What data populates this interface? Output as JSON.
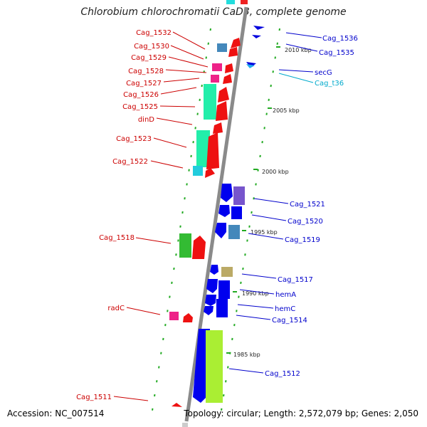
{
  "title": "Chlorobium chlorochromatii CaD3, complete genome",
  "footer": {
    "accession": "Accession: NC_007514",
    "topology": "Topology: circular; Length: 2,572,079 bp; Genes: 2,050"
  },
  "colors": {
    "backbone": "#888888",
    "red_label": "#cc0000",
    "blue_label": "#0000cc",
    "cyan_label": "#00aacc",
    "tick": "#22aa22"
  },
  "scale_labels": [
    "2010 kbp",
    "2005 kbp",
    "2000 kbp",
    "1995 kbp",
    "1990 kbp",
    "1985 kbp"
  ],
  "left_genes": [
    "Cag_1532",
    "Cag_1530",
    "Cag_1529",
    "Cag_1528",
    "Cag_1527",
    "Cag_1526",
    "Cag_1525",
    "dinD",
    "Cag_1523",
    "Cag_1522",
    "Cag_1518",
    "radC",
    "Cag_1511"
  ],
  "right_genes": [
    "Cag_1536",
    "Cag_1535",
    "secG",
    "Cag_t36",
    "Cag_1521",
    "Cag_1520",
    "Cag_1519",
    "Cag_1517",
    "hemA",
    "hemC",
    "Cag_1514",
    "Cag_1512"
  ]
}
